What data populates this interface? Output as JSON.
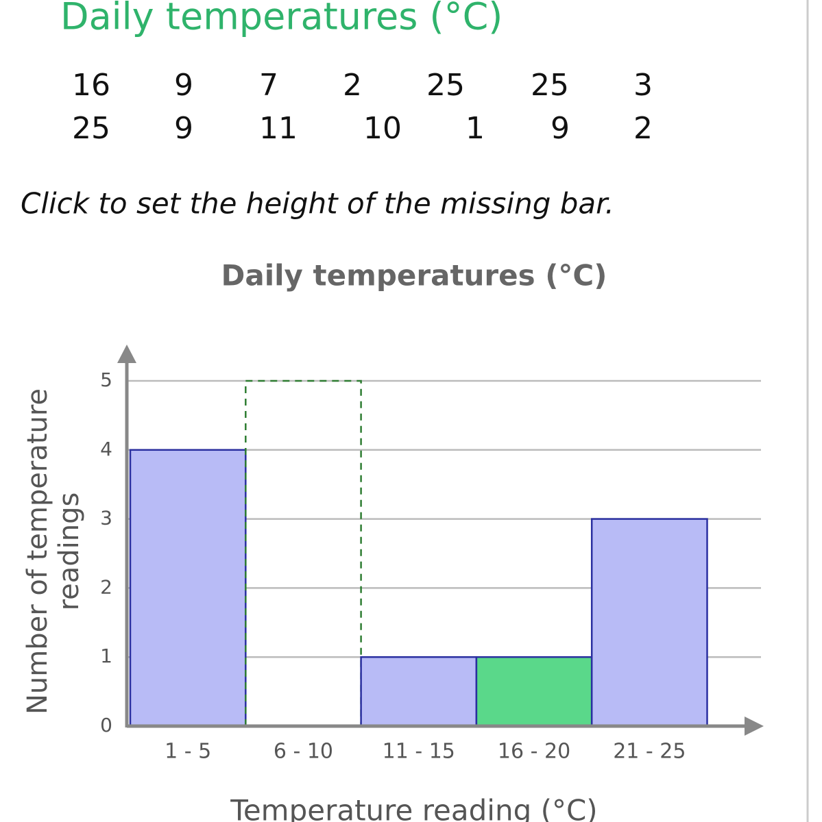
{
  "header": {
    "title": "Daily temperatures (°C)"
  },
  "table": {
    "rows": [
      [
        16,
        9,
        7,
        2,
        25,
        25,
        3
      ],
      [
        25,
        9,
        11,
        10,
        1,
        9,
        2
      ]
    ]
  },
  "instruction": "Click to set the height of the missing bar.",
  "chart_data": {
    "type": "bar",
    "title": "Daily temperatures (°C)",
    "x_label": "Temperature reading (°C)",
    "y_label": "Number of temperature readings",
    "categories": [
      "1 - 5",
      "6 - 10",
      "11 - 15",
      "16 - 20",
      "21 - 25"
    ],
    "values": [
      4,
      null,
      1,
      1,
      3
    ],
    "colors": [
      "#b8bbf6",
      "#b8bbf6",
      "#b8bbf6",
      "#5ad88a",
      "#b8bbf6"
    ],
    "dashed_outline": {
      "values": [
        null,
        5,
        null,
        null,
        null
      ],
      "color": "#2e7d32"
    },
    "ylim": [
      0,
      5
    ],
    "yticks": [
      0,
      1,
      2,
      3,
      4,
      5
    ],
    "grid": true
  }
}
